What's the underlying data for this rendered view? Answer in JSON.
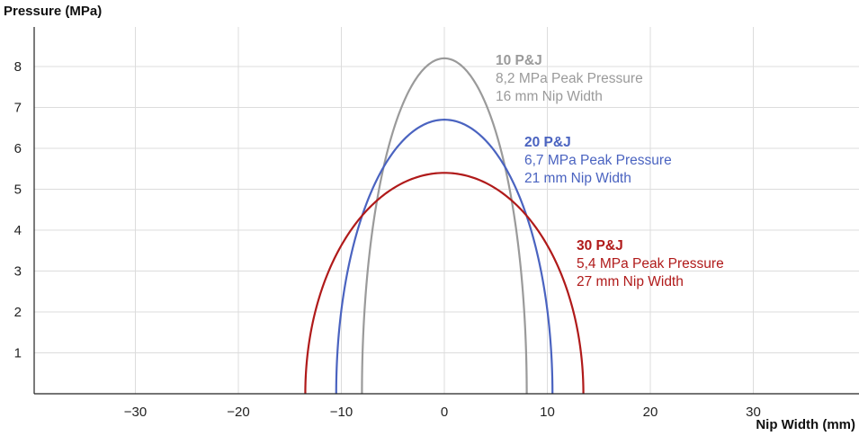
{
  "chart_data": {
    "type": "line",
    "title": "",
    "xlabel": "Nip Width (mm)",
    "ylabel": "Pressure (MPa)",
    "xlim": [
      -40,
      40
    ],
    "ylim": [
      0,
      9
    ],
    "xticks": [
      -30,
      -20,
      -10,
      0,
      10,
      20,
      30
    ],
    "xtick_labels": [
      "−30",
      "−20",
      "−10",
      "0",
      "10",
      "20",
      "30"
    ],
    "yticks": [
      1,
      2,
      3,
      4,
      5,
      6,
      7,
      8
    ],
    "ytick_labels": [
      "1",
      "2",
      "3",
      "4",
      "5",
      "6",
      "7",
      "8"
    ],
    "grid": true,
    "series": [
      {
        "name": "10 P&J",
        "color": "#9a9a9a",
        "peak_pressure": 8.2,
        "nip_width": 16,
        "annotation": [
          "10 P&J",
          "8,2 MPa Peak Pressure",
          "16 mm Nip Width"
        ]
      },
      {
        "name": "20 P&J",
        "color": "#4a63c0",
        "peak_pressure": 6.7,
        "nip_width": 21,
        "annotation": [
          "20 P&J",
          "6,7 MPa Peak Pressure",
          "21 mm Nip Width"
        ]
      },
      {
        "name": "30 P&J",
        "color": "#b01a1a",
        "peak_pressure": 5.4,
        "nip_width": 27,
        "annotation": [
          "30 P&J",
          "5,4 MPa Peak Pressure",
          "27 mm Nip Width"
        ]
      }
    ]
  }
}
